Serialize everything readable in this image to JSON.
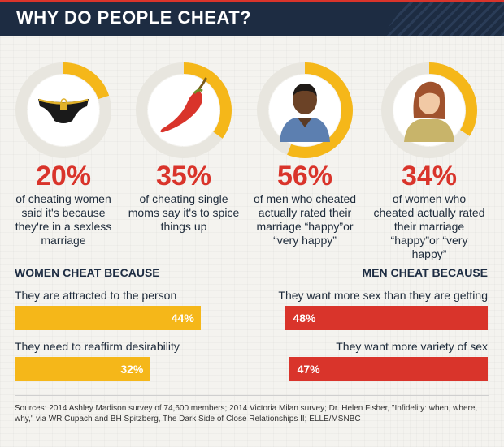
{
  "title": "WHY DO PEOPLE CHEAT?",
  "colors": {
    "navy": "#1d2c42",
    "red": "#d9342b",
    "yellow": "#f5b719",
    "ring_track": "#e8e6df"
  },
  "stats": [
    {
      "percent": "20%",
      "value": 20,
      "icon": "underwear-icon",
      "description": "of cheating women said it's because they're in a sexless marriage"
    },
    {
      "percent": "35%",
      "value": 35,
      "icon": "chili-pepper-icon",
      "description": "of cheating single moms say it's to spice things up"
    },
    {
      "percent": "56%",
      "value": 56,
      "icon": "man-avatar-icon",
      "description": "of men who cheated actually rated their marriage “happy”or “very happy”"
    },
    {
      "percent": "34%",
      "value": 34,
      "icon": "woman-avatar-icon",
      "description": "of women who cheated actually rated their marriage “happy”or “very happy”"
    }
  ],
  "women": {
    "heading": "WOMEN CHEAT BECAUSE",
    "bars": [
      {
        "label": "They are attracted to the person",
        "value": 44,
        "display": "44%"
      },
      {
        "label": "They need to reaffirm desirability",
        "value": 32,
        "display": "32%"
      }
    ]
  },
  "men": {
    "heading": "MEN CHEAT BECAUSE",
    "bars": [
      {
        "label": "They want more sex than they are getting",
        "value": 48,
        "display": "48%"
      },
      {
        "label": "They want more variety of sex",
        "value": 47,
        "display": "47%"
      }
    ]
  },
  "sources": "Sources: 2014 Ashley Madison survey of 74,600 members; 2014 Victoria Milan survey; Dr. Helen Fisher, \"Infidelity: when, where, why,\" via WR Cupach and BH Spitzberg, The Dark Side of Close Relationships II;  ELLE/MSNBC",
  "chart_data": [
    {
      "type": "pie",
      "categories": [
        "20%",
        "35%",
        "56%",
        "34%"
      ],
      "values": [
        20,
        35,
        56,
        34
      ]
    },
    {
      "type": "bar",
      "title": "WOMEN CHEAT BECAUSE",
      "categories": [
        "They are attracted to the person",
        "They need to reaffirm desirability"
      ],
      "values": [
        44,
        32
      ]
    },
    {
      "type": "bar",
      "title": "MEN CHEAT BECAUSE",
      "categories": [
        "They want more sex than they are getting",
        "They want more variety of sex"
      ],
      "values": [
        48,
        47
      ]
    }
  ]
}
